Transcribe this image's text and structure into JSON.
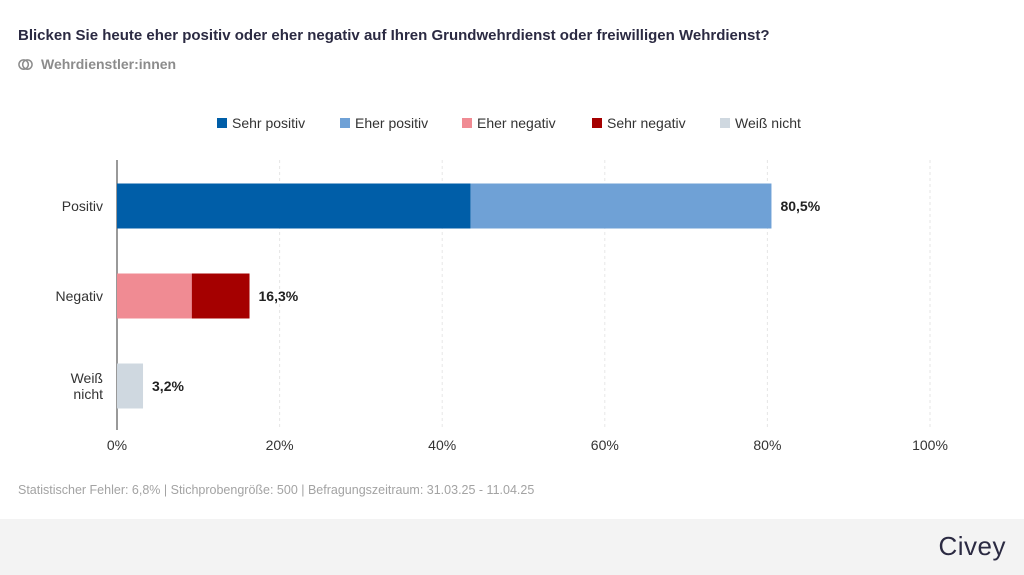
{
  "header": {
    "title": "Blicken Sie heute eher positiv oder eher negativ auf Ihren Grundwehrdienst oder freiwilligen Wehrdienst?",
    "subtitle": "Wehrdienstler:innen",
    "subtitle_icon": "group-icon"
  },
  "chart_data": {
    "type": "bar",
    "orientation": "horizontal",
    "stacked": true,
    "categories": [
      "Positiv",
      "Negativ",
      "Weiß nicht"
    ],
    "category_lines": [
      [
        "Positiv"
      ],
      [
        "Negativ"
      ],
      [
        "Weiß",
        "nicht"
      ]
    ],
    "series": [
      {
        "name": "Sehr positiv",
        "color": "#005ea8",
        "values": [
          43.5,
          0,
          0
        ]
      },
      {
        "name": "Eher positiv",
        "color": "#6fa1d6",
        "values": [
          37.0,
          0,
          0
        ]
      },
      {
        "name": "Eher negativ",
        "color": "#f08b93",
        "values": [
          0,
          9.2,
          0
        ]
      },
      {
        "name": "Sehr negativ",
        "color": "#a50000",
        "values": [
          0,
          7.1,
          0
        ]
      },
      {
        "name": "Weiß nicht",
        "color": "#cfd8e0",
        "values": [
          0,
          0,
          3.2
        ]
      }
    ],
    "totals": [
      "80,5%",
      "16,3%",
      "3,2%"
    ],
    "xlim": [
      0,
      100
    ],
    "xticks": [
      "0%",
      "20%",
      "40%",
      "60%",
      "80%",
      "100%"
    ],
    "grid": true,
    "legend_position": "top-center"
  },
  "footer": {
    "note": "Statistischer Fehler: 6,8% | Stichprobengröße: 500 | Befragungszeitraum: 31.03.25 - 11.04.25",
    "brand": "Civey"
  }
}
